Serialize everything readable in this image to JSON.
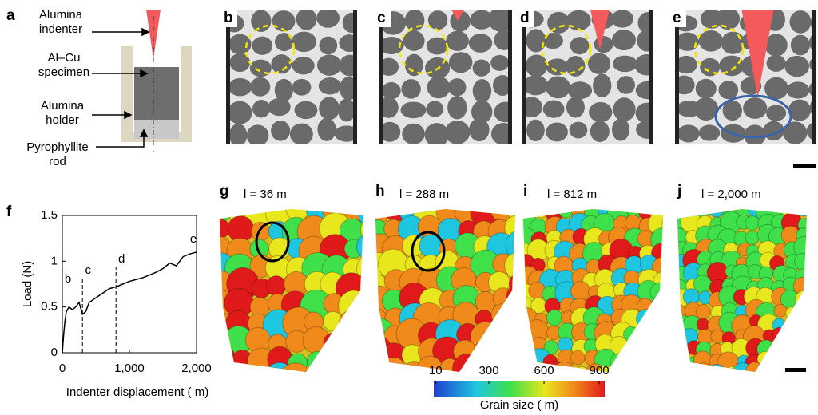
{
  "panel_labels": [
    "a",
    "b",
    "c",
    "d",
    "e",
    "f",
    "g",
    "h",
    "i",
    "j"
  ],
  "schematic": {
    "labels": [
      "Alumina indenter",
      "Al–Cu specimen",
      "Alumina holder",
      "Pyrophyllite rod"
    ]
  },
  "chart_data": {
    "type": "line",
    "xlabel": "Indenter displacement ( m)",
    "ylabel": "Load (N)",
    "x": [
      0,
      20,
      40,
      60,
      100,
      150,
      200,
      250,
      300,
      350,
      400,
      500,
      600,
      700,
      800,
      900,
      1000,
      1100,
      1200,
      1300,
      1400,
      1500,
      1600,
      1700,
      1800,
      1900,
      2000
    ],
    "series": [
      {
        "color": "#000000",
        "values": [
          0,
          0.2,
          0.35,
          0.45,
          0.5,
          0.47,
          0.5,
          0.55,
          0.42,
          0.45,
          0.55,
          0.6,
          0.65,
          0.7,
          0.72,
          0.75,
          0.78,
          0.8,
          0.82,
          0.85,
          0.88,
          0.92,
          0.98,
          0.95,
          1.05,
          1.08,
          1.1
        ]
      }
    ],
    "markers": [
      {
        "label": "b",
        "x": 0,
        "y": 0.8
      },
      {
        "label": "c",
        "x": 300,
        "y": 0.9
      },
      {
        "label": "d",
        "x": 800,
        "y": 1.02
      },
      {
        "label": "e",
        "x": 2000,
        "y": 1.24
      }
    ],
    "xlim": [
      0,
      2000
    ],
    "ylim": [
      0,
      1.5
    ],
    "xticks": [
      0,
      {
        "value": 1000,
        "label": "1,000"
      },
      {
        "value": 2000,
        "label": "2,000"
      }
    ],
    "yticks": [
      0,
      0.5,
      1,
      1.5
    ],
    "grid": false
  },
  "render_labels": [
    "l = 36 m",
    "l = 288 m",
    "l = 812 m",
    "l = 2,000 m"
  ],
  "colorbar": {
    "label": "Grain size ( m)",
    "range": [
      0,
      930
    ],
    "ticks": [
      10,
      300,
      600,
      900
    ]
  }
}
